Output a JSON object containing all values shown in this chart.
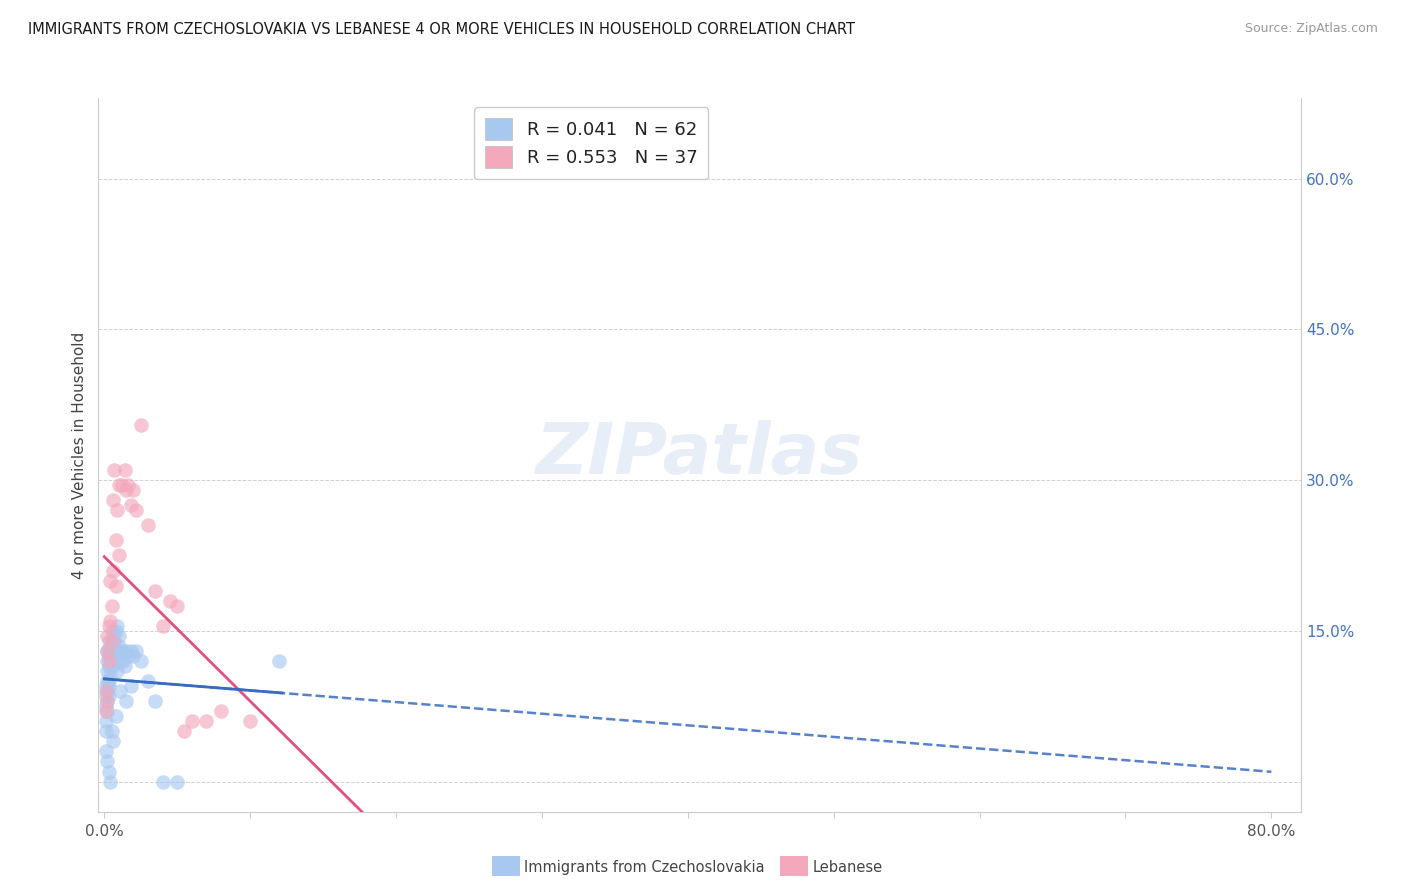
{
  "title": "IMMIGRANTS FROM CZECHOSLOVAKIA VS LEBANESE 4 OR MORE VEHICLES IN HOUSEHOLD CORRELATION CHART",
  "source": "Source: ZipAtlas.com",
  "ylabel_left": "4 or more Vehicles in Household",
  "xlim": [
    -0.004,
    0.82
  ],
  "ylim": [
    -0.03,
    0.68
  ],
  "x_ticks": [
    0.0,
    0.1,
    0.2,
    0.3,
    0.4,
    0.5,
    0.6,
    0.7,
    0.8
  ],
  "x_tick_labels": [
    "0.0%",
    "",
    "",
    "",
    "",
    "",
    "",
    "",
    "80.0%"
  ],
  "y_ticks_right": [
    0.0,
    0.15,
    0.3,
    0.45,
    0.6
  ],
  "y_tick_labels_right": [
    "",
    "15.0%",
    "30.0%",
    "45.0%",
    "60.0%"
  ],
  "color_blue": "#a8c8f0",
  "color_pink": "#f4a8bc",
  "color_blue_line": "#3a6bc4",
  "color_pink_line": "#e05080",
  "color_right_axis": "#4472c4",
  "legend_r1": "R = 0.041",
  "legend_n1": "N = 62",
  "legend_r2": "R = 0.553",
  "legend_n2": "N = 37",
  "legend_label1": "Immigrants from Czechoslovakia",
  "legend_label2": "Lebanese",
  "watermark_text": "ZIPatlas",
  "czecho_x": [
    0.001,
    0.001,
    0.001,
    0.001,
    0.001,
    0.001,
    0.002,
    0.002,
    0.002,
    0.002,
    0.002,
    0.002,
    0.002,
    0.002,
    0.003,
    0.003,
    0.003,
    0.003,
    0.003,
    0.003,
    0.003,
    0.003,
    0.004,
    0.004,
    0.004,
    0.004,
    0.004,
    0.005,
    0.005,
    0.005,
    0.005,
    0.006,
    0.006,
    0.006,
    0.006,
    0.007,
    0.007,
    0.008,
    0.008,
    0.008,
    0.009,
    0.009,
    0.01,
    0.01,
    0.01,
    0.011,
    0.012,
    0.013,
    0.014,
    0.015,
    0.015,
    0.016,
    0.018,
    0.018,
    0.02,
    0.022,
    0.025,
    0.03,
    0.035,
    0.04,
    0.05,
    0.12
  ],
  "czecho_y": [
    0.095,
    0.085,
    0.075,
    0.06,
    0.05,
    0.03,
    0.13,
    0.12,
    0.11,
    0.1,
    0.09,
    0.08,
    0.07,
    0.02,
    0.14,
    0.13,
    0.125,
    0.115,
    0.1,
    0.095,
    0.085,
    0.01,
    0.135,
    0.125,
    0.115,
    0.105,
    0.0,
    0.15,
    0.14,
    0.13,
    0.05,
    0.145,
    0.135,
    0.115,
    0.04,
    0.14,
    0.12,
    0.15,
    0.13,
    0.065,
    0.155,
    0.11,
    0.145,
    0.135,
    0.12,
    0.09,
    0.13,
    0.12,
    0.115,
    0.13,
    0.08,
    0.125,
    0.13,
    0.095,
    0.125,
    0.13,
    0.12,
    0.1,
    0.08,
    0.0,
    0.0,
    0.12
  ],
  "leb_x": [
    0.001,
    0.001,
    0.002,
    0.002,
    0.002,
    0.003,
    0.003,
    0.004,
    0.004,
    0.005,
    0.005,
    0.006,
    0.006,
    0.007,
    0.008,
    0.008,
    0.009,
    0.01,
    0.01,
    0.012,
    0.014,
    0.015,
    0.016,
    0.018,
    0.02,
    0.022,
    0.025,
    0.03,
    0.035,
    0.04,
    0.045,
    0.05,
    0.055,
    0.06,
    0.07,
    0.08,
    0.1
  ],
  "leb_y": [
    0.09,
    0.07,
    0.145,
    0.13,
    0.08,
    0.155,
    0.12,
    0.2,
    0.16,
    0.175,
    0.14,
    0.28,
    0.21,
    0.31,
    0.24,
    0.195,
    0.27,
    0.295,
    0.225,
    0.295,
    0.31,
    0.29,
    0.295,
    0.275,
    0.29,
    0.27,
    0.355,
    0.255,
    0.19,
    0.155,
    0.18,
    0.175,
    0.05,
    0.06,
    0.06,
    0.07,
    0.06
  ]
}
